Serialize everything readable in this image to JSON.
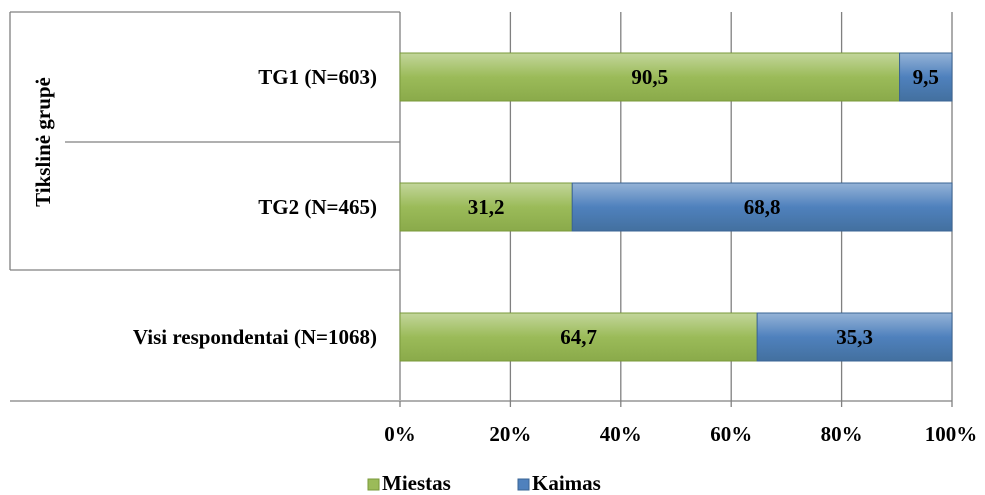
{
  "chart_data": {
    "type": "bar",
    "orientation": "horizontal",
    "stacked": true,
    "percent_stacked": true,
    "axis_group_label": "Tikslinė grupė",
    "categories": [
      "TG1 (N=603)",
      "TG2 (N=465)",
      "Visi respondentai (N=1068)"
    ],
    "series": [
      {
        "name": "Miestas",
        "values": [
          90.5,
          31.2,
          64.7
        ],
        "labels": [
          "90,5",
          "31,2",
          "64,7"
        ],
        "color": "#9bbb59"
      },
      {
        "name": "Kaimas",
        "values": [
          9.5,
          68.8,
          35.3
        ],
        "labels": [
          "9,5",
          "68,8",
          "35,3"
        ],
        "color": "#4f81bd"
      }
    ],
    "x_ticks": [
      "0%",
      "20%",
      "40%",
      "60%",
      "80%",
      "100%"
    ],
    "xlim": [
      0,
      100
    ],
    "grid": true,
    "legend_position": "bottom"
  }
}
